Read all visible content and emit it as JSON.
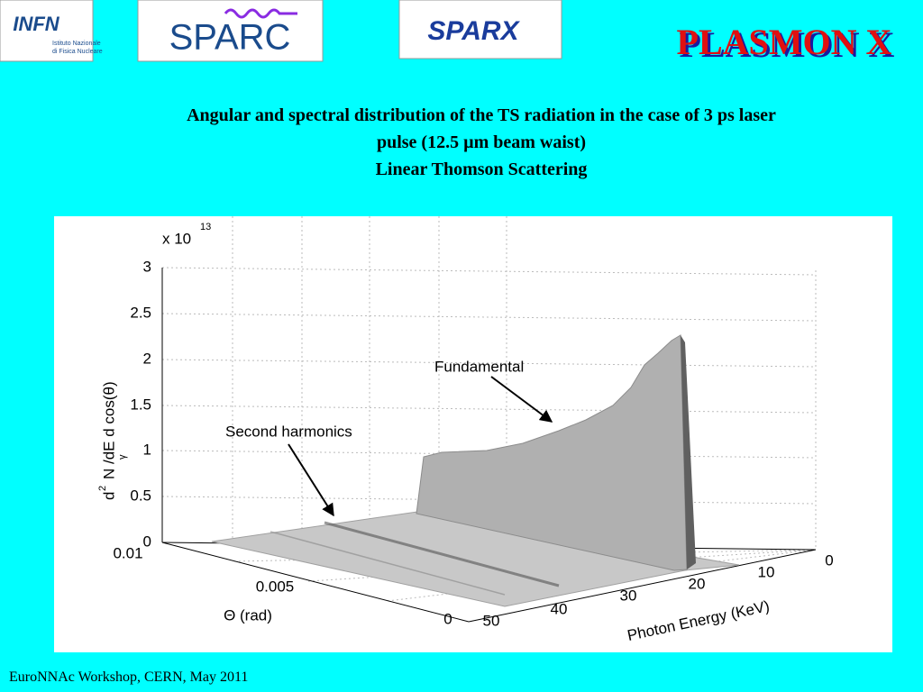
{
  "header": {
    "logos": {
      "infn": "INFN",
      "infn_caption_1": "Istituto Nazionale",
      "infn_caption_2": "di Fisica Nucleare",
      "sparc": "SPARC",
      "sparx": "SPARX",
      "plasmonx": "PLASMON X"
    },
    "title": [
      "Angular and spectral distribution of the TS radiation in the case of 3 ps laser",
      "pulse (12.5 µm beam waist)",
      "Linear Thomson Scattering"
    ]
  },
  "figure": {
    "exponent_base": "x 10",
    "exponent_power": "13",
    "z_label": {
      "d": "d",
      "sup": "2",
      "main": "N /dE d cos(θ)",
      "sub": "γ"
    },
    "z_ticks": [
      0,
      0.5,
      1,
      1.5,
      2,
      2.5,
      3
    ],
    "theta_ticks": [
      0.01,
      0.005,
      0
    ],
    "theta_label": "Θ (rad)",
    "energy_ticks": [
      50,
      40,
      30,
      20,
      10,
      0
    ],
    "energy_label": "Photon Energy (KeV)",
    "annotations": [
      "Fundamental",
      "Second harmonics"
    ]
  },
  "footer": "EuroNNAc Workshop, CERN, May 2011"
}
